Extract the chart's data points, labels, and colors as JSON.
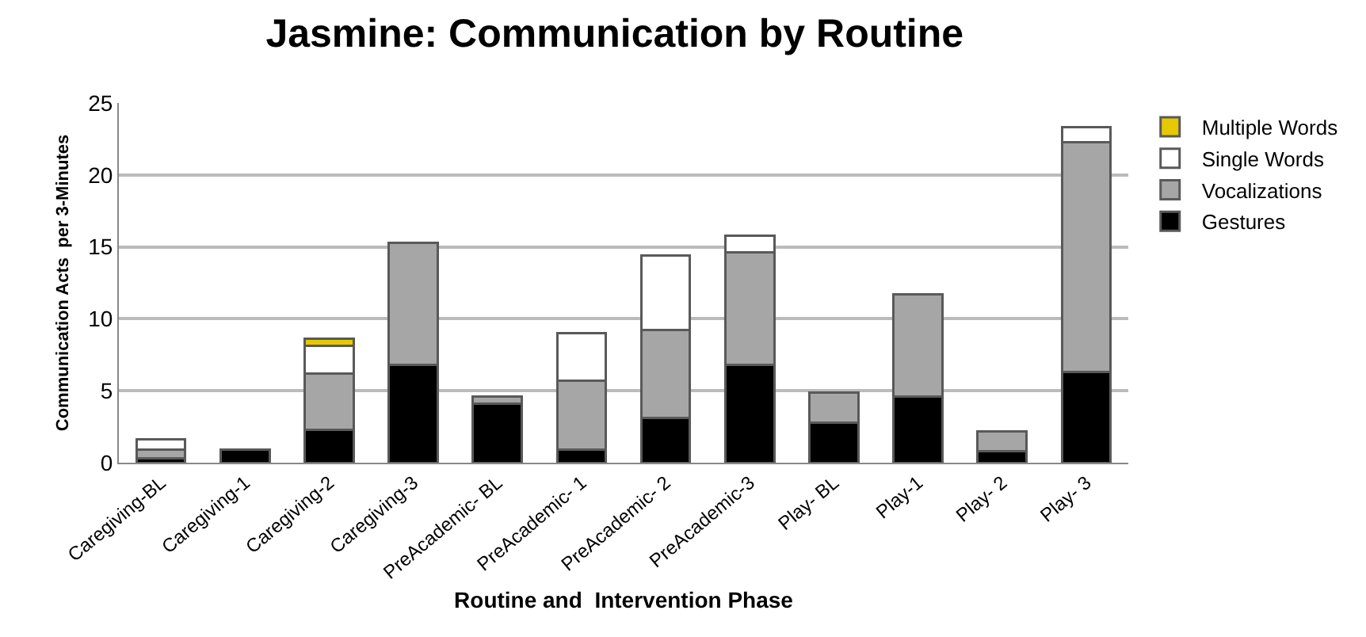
{
  "chart_data": {
    "type": "bar",
    "title": "Jasmine: Communication by Routine",
    "xlabel": "Routine and  Intervention Phase",
    "ylabel": "Communication Acts  per 3-Minutes",
    "categories": [
      "Caregiving-BL",
      "Caregiving-1",
      "Caregiving-2",
      "Caregiving-3",
      "PreAcademic- BL",
      "PreAcademic- 1",
      "PreAcademic- 2",
      "PreAcademic-3",
      "Play- BL",
      "Play-1",
      "Play- 2",
      "Play- 3"
    ],
    "stacked": true,
    "series": [
      {
        "name": "Gestures",
        "color": "#000000",
        "values": [
          0.3,
          0.9,
          2.3,
          6.8,
          4.1,
          0.9,
          3.1,
          6.8,
          2.8,
          4.6,
          0.8,
          6.3
        ]
      },
      {
        "name": "Vocalizations",
        "color": "#a6a6a6",
        "values": [
          0.6,
          null,
          3.9,
          8.5,
          0.5,
          4.8,
          6.1,
          7.8,
          2.1,
          7.1,
          1.4,
          16.0
        ]
      },
      {
        "name": "Single Words",
        "color": "#ffffff",
        "values": [
          0.7,
          null,
          1.9,
          null,
          null,
          3.3,
          5.2,
          1.2,
          null,
          null,
          null,
          1.0
        ]
      },
      {
        "name": "Multiple Words",
        "color": "#e6c800",
        "values": [
          null,
          null,
          0.5,
          null,
          null,
          null,
          null,
          null,
          null,
          null,
          null,
          null
        ]
      }
    ],
    "ylim": [
      0,
      25
    ],
    "yticks": [
      0,
      5,
      10,
      15,
      20,
      25
    ],
    "grid": "y",
    "legend": "right"
  }
}
